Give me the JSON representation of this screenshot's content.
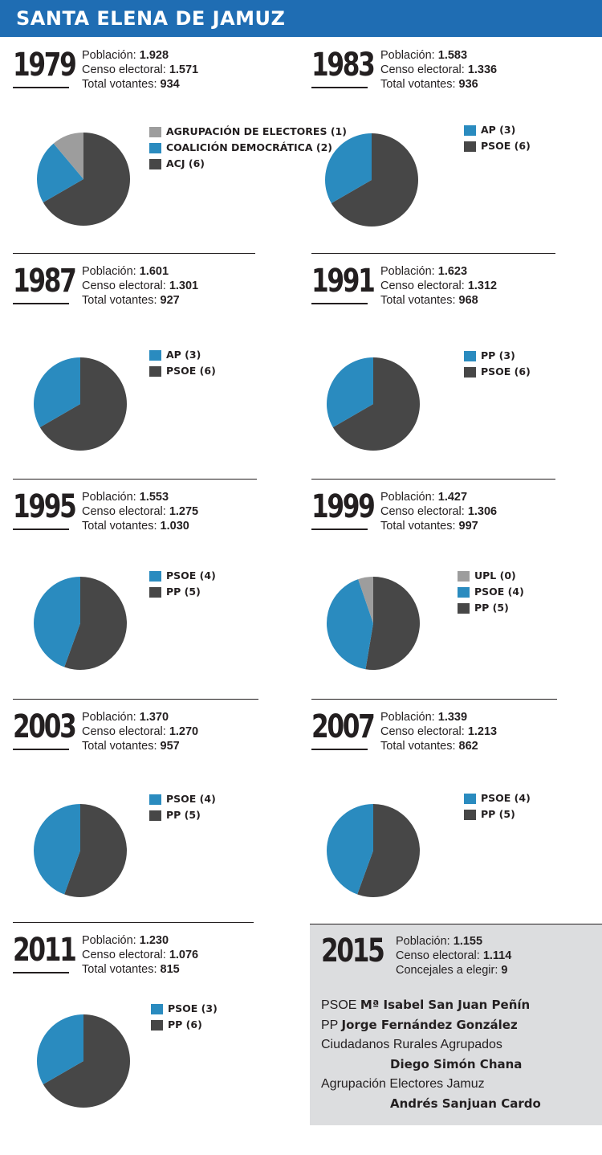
{
  "title": "SANTA ELENA DE JAMUZ",
  "colors": {
    "blue": "#2a8bbf",
    "dark": "#474747",
    "gray": "#9d9d9d",
    "header": "#1f6db3"
  },
  "labels": {
    "poblacion": "Población:",
    "censo": "Censo electoral:",
    "votantes": "Total votantes:",
    "concejales": "Concejales a elegir:"
  },
  "chart_data": [
    {
      "type": "pie",
      "year": "1979",
      "poblacion": "1.928",
      "censo": "1.571",
      "votantes": "934",
      "slices": [
        {
          "label": "AGRUPACIÓN DE ELECTORES (1)",
          "value": 1,
          "color": "#9d9d9d"
        },
        {
          "label": "COALICIÓN DEMOCRÁTICA (2)",
          "value": 2,
          "color": "#2a8bbf"
        },
        {
          "label": "ACJ (6)",
          "value": 6,
          "color": "#474747"
        }
      ]
    },
    {
      "type": "pie",
      "year": "1983",
      "poblacion": "1.583",
      "censo": "1.336",
      "votantes": "936",
      "slices": [
        {
          "label": "AP (3)",
          "value": 3,
          "color": "#2a8bbf"
        },
        {
          "label": "PSOE (6)",
          "value": 6,
          "color": "#474747"
        }
      ]
    },
    {
      "type": "pie",
      "year": "1987",
      "poblacion": "1.601",
      "censo": "1.301",
      "votantes": "927",
      "slices": [
        {
          "label": "AP (3)",
          "value": 3,
          "color": "#2a8bbf"
        },
        {
          "label": "PSOE (6)",
          "value": 6,
          "color": "#474747"
        }
      ]
    },
    {
      "type": "pie",
      "year": "1991",
      "poblacion": "1.623",
      "censo": "1.312",
      "votantes": "968",
      "slices": [
        {
          "label": "PP (3)",
          "value": 3,
          "color": "#2a8bbf"
        },
        {
          "label": "PSOE (6)",
          "value": 6,
          "color": "#474747"
        }
      ]
    },
    {
      "type": "pie",
      "year": "1995",
      "poblacion": "1.553",
      "censo": "1.275",
      "votantes": "1.030",
      "slices": [
        {
          "label": "PSOE (4)",
          "value": 4,
          "color": "#2a8bbf"
        },
        {
          "label": "PP (5)",
          "value": 5,
          "color": "#474747"
        }
      ]
    },
    {
      "type": "pie",
      "year": "1999",
      "poblacion": "1.427",
      "censo": "1.306",
      "votantes": "997",
      "slices": [
        {
          "label": "UPL (0)",
          "value": 0.5,
          "color": "#9d9d9d"
        },
        {
          "label": "PSOE (4)",
          "value": 4,
          "color": "#2a8bbf"
        },
        {
          "label": "PP (5)",
          "value": 5,
          "color": "#474747"
        }
      ]
    },
    {
      "type": "pie",
      "year": "2003",
      "poblacion": "1.370",
      "censo": "1.270",
      "votantes": "957",
      "slices": [
        {
          "label": "PSOE (4)",
          "value": 4,
          "color": "#2a8bbf"
        },
        {
          "label": "PP (5)",
          "value": 5,
          "color": "#474747"
        }
      ]
    },
    {
      "type": "pie",
      "year": "2007",
      "poblacion": "1.339",
      "censo": "1.213",
      "votantes": "862",
      "slices": [
        {
          "label": "PSOE (4)",
          "value": 4,
          "color": "#2a8bbf"
        },
        {
          "label": "PP (5)",
          "value": 5,
          "color": "#474747"
        }
      ]
    },
    {
      "type": "pie",
      "year": "2011",
      "poblacion": "1.230",
      "censo": "1.076",
      "votantes": "815",
      "slices": [
        {
          "label": "PSOE (3)",
          "value": 3,
          "color": "#2a8bbf"
        },
        {
          "label": "PP (6)",
          "value": 6,
          "color": "#474747"
        }
      ]
    }
  ],
  "election_2015": {
    "year": "2015",
    "poblacion": "1.155",
    "censo": "1.114",
    "concejales": "9",
    "candidates": [
      {
        "party": "PSOE",
        "name": "Mª Isabel San Juan Peñín"
      },
      {
        "party": "PP",
        "name": "Jorge Fernández González"
      },
      {
        "party": "Ciudadanos Rurales Agrupados",
        "name": "Diego Simón Chana"
      },
      {
        "party": "Agrupación Electores Jamuz",
        "name": "Andrés Sanjuan Cardo"
      }
    ]
  }
}
